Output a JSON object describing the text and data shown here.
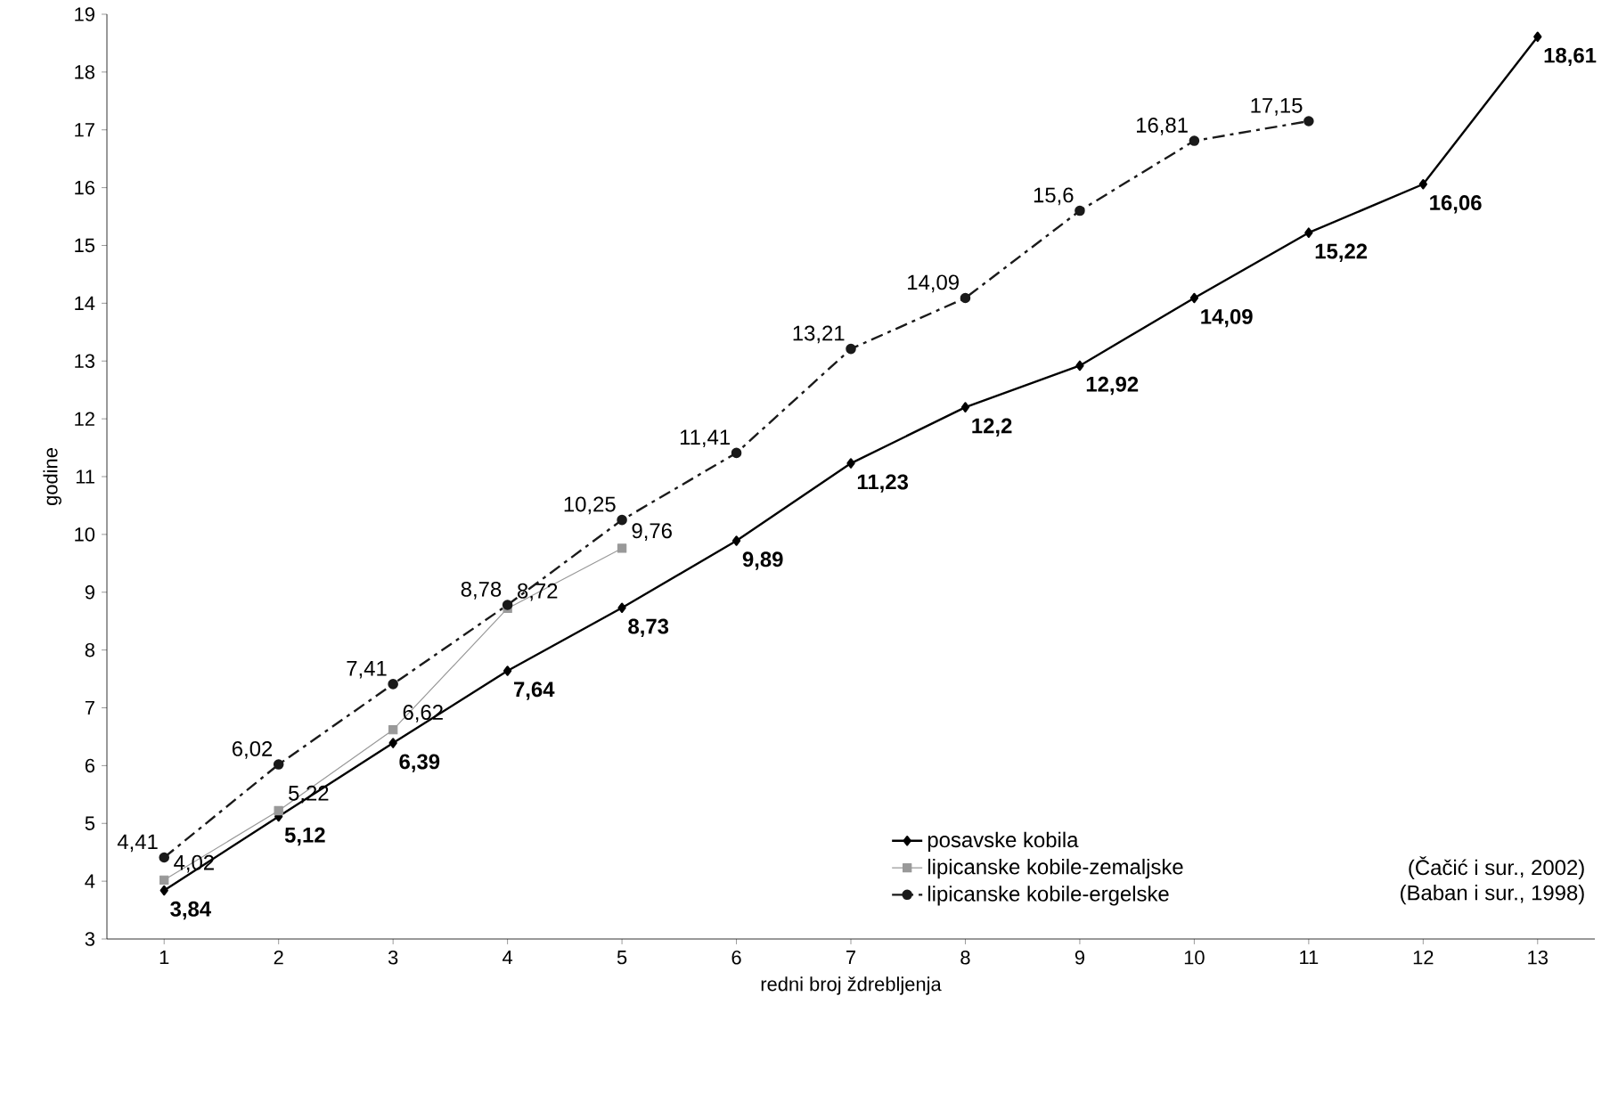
{
  "chart_data": {
    "type": "line",
    "xlabel": "redni broj ždrebljenja",
    "ylabel": "godine",
    "categories": [
      "1",
      "2",
      "3",
      "4",
      "5",
      "6",
      "7",
      "8",
      "9",
      "10",
      "11",
      "12",
      "13"
    ],
    "ylim": [
      3,
      19
    ],
    "yticks": [
      3,
      4,
      5,
      6,
      7,
      8,
      9,
      10,
      11,
      12,
      13,
      14,
      15,
      16,
      17,
      18,
      19
    ],
    "grid": false,
    "legend": "bottom right",
    "series": [
      {
        "name": "posavske kobila",
        "color": "#000000",
        "marker": "diamond",
        "line_style": "solid",
        "values": [
          3.84,
          5.12,
          6.39,
          7.64,
          8.73,
          9.89,
          11.23,
          12.2,
          12.92,
          14.09,
          15.22,
          16.06,
          18.61
        ],
        "value_labels": [
          "3,84",
          "5,12",
          "6,39",
          "7,64",
          "8,73",
          "9,89",
          "11,23",
          "12,2",
          "12,92",
          "14,09",
          "15,22",
          "16,06",
          "18,61"
        ]
      },
      {
        "name": "lipicanske kobile-zemaljske",
        "color": "#999999",
        "marker": "square",
        "line_style": "solid",
        "values": [
          4.02,
          5.22,
          6.62,
          8.72,
          9.76,
          null,
          null,
          null,
          null,
          null,
          null,
          null,
          null
        ],
        "value_labels": [
          "4,02",
          "5,22",
          "6,62",
          "8,72",
          "9,76",
          null,
          null,
          null,
          null,
          null,
          null,
          null,
          null
        ]
      },
      {
        "name": "lipicanske kobile-ergelske",
        "color": "#1a1a1a",
        "marker": "circle",
        "line_style": "dashed",
        "values": [
          4.41,
          6.02,
          7.41,
          8.78,
          10.25,
          11.41,
          13.21,
          14.09,
          15.6,
          16.81,
          17.15,
          null,
          null
        ],
        "value_labels": [
          "4,41",
          "6,02",
          "7,41",
          "8,78",
          "10,25",
          "11,41",
          "13,21",
          "14,09",
          "15,6",
          "16,81",
          "17,15",
          null,
          null
        ]
      }
    ],
    "annotations": [
      "(Čačić i sur., 2002)",
      "(Baban i sur., 1998)"
    ]
  }
}
